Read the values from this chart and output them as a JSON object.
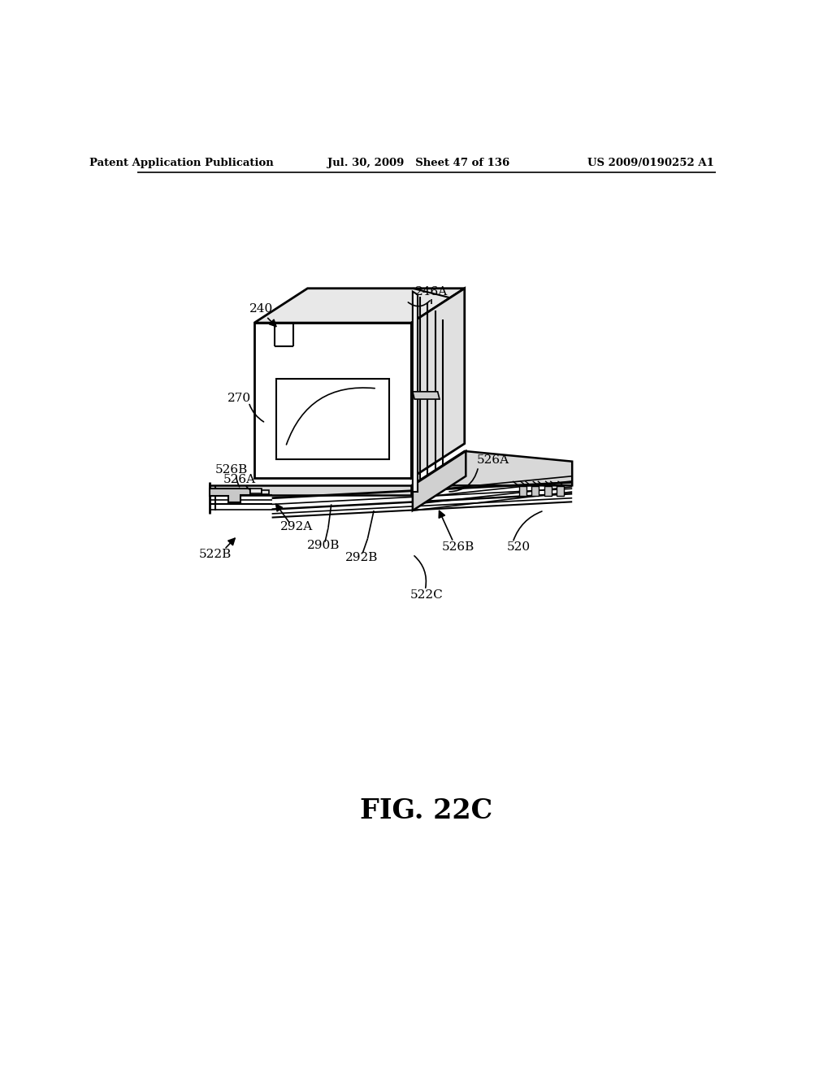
{
  "bg_color": "#ffffff",
  "header_left": "Patent Application Publication",
  "header_mid": "Jul. 30, 2009   Sheet 47 of 136",
  "header_right": "US 2009/0190252 A1",
  "figure_label": "FIG. 22C"
}
